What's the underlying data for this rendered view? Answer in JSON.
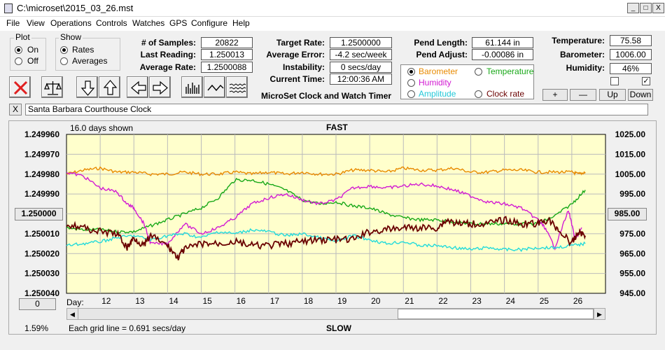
{
  "window": {
    "title": "C:\\microset\\2015_03_26.mst",
    "min": "_",
    "max": "□",
    "close": "X"
  },
  "menu": [
    "File",
    "View",
    "Operations",
    "Controls",
    "Watches",
    "GPS",
    "Configure",
    "Help"
  ],
  "plot": {
    "title": "Plot",
    "on": "On",
    "off": "Off"
  },
  "show": {
    "title": "Show",
    "rates": "Rates",
    "averages": "Averages"
  },
  "stats": {
    "samples_label": "# of Samples:",
    "samples": "20822",
    "last_label": "Last Reading:",
    "last": "1.250013",
    "avg_label": "Average Rate:",
    "avg": "1.2500088"
  },
  "rates": {
    "target_label": "Target Rate:",
    "target": "1.2500000",
    "avgerr_label": "Average Error:",
    "avgerr": "-4.2 sec/week",
    "instab_label": "Instability:",
    "instab": "0 secs/day",
    "time_label": "Current Time:",
    "time": "12:00:36 AM",
    "app_title": "MicroSet Clock and Watch Timer"
  },
  "pend": {
    "length_label": "Pend Length:",
    "length": "61.144 in",
    "adjust_label": "Pend Adjust:",
    "adjust": "-0.00086 in"
  },
  "aux": {
    "barometer": "Barometer",
    "temperature": "Temperature",
    "humidity": "Humidity",
    "amplitude": "Amplitude",
    "clockrate": "Clock rate"
  },
  "env": {
    "temp_label": "Temperature:",
    "temp": "75.58",
    "baro_label": "Barometer:",
    "baro": "1006.00",
    "hum_label": "Humidity:",
    "hum": "46%",
    "plus": "+",
    "minus": "—",
    "up": "Up",
    "down": "Down",
    "check_mark": "✓"
  },
  "clockname": {
    "close": "X",
    "name": "Santa Barbara Courthouse Clock"
  },
  "chart": {
    "days_shown": "16.0 days shown",
    "top": "FAST",
    "bottom": "SLOW",
    "center_btn": "1.250000",
    "right_btn": "985.00",
    "zero_btn": "0",
    "day_label": "Day:",
    "grid_note": "Each grid line = 0.691 secs/day",
    "percent": "1.59%",
    "scroll_left": "◀",
    "scroll_right": "▶"
  },
  "colors": {
    "barometer": "#e88a00",
    "temperature": "#18a818",
    "humidity": "#d21ad2",
    "amplitude": "#22dada",
    "clock": "#6a0000",
    "plotbg": "#ffffcc"
  },
  "chart_data": {
    "type": "line",
    "left_ticks": [
      "1.249960",
      "1.249970",
      "1.249980",
      "1.249990",
      "1.250000",
      "1.250010",
      "1.250020",
      "1.250030",
      "1.250040"
    ],
    "right_ticks": [
      "1025.00",
      "1015.00",
      "1005.00",
      "995.00",
      "985.00",
      "975.00",
      "965.00",
      "955.00",
      "945.00"
    ],
    "ylim_left": [
      1.25004,
      1.24996
    ],
    "ylim_right": [
      945,
      1025
    ],
    "x_tick_labels": [
      "12",
      "13",
      "14",
      "15",
      "16",
      "17",
      "18",
      "19",
      "20",
      "21",
      "22",
      "23",
      "24",
      "25",
      "26"
    ],
    "x_ticks": [
      12,
      13,
      14,
      15,
      16,
      17,
      18,
      19,
      20,
      21,
      22,
      23,
      24,
      25,
      26
    ],
    "xlim": [
      11,
      27
    ],
    "series": [
      {
        "name": "Barometer",
        "axis": "right",
        "color": "#e88a00",
        "x": [
          11,
          11.5,
          12,
          12.5,
          13,
          13.5,
          14,
          14.5,
          15,
          15.5,
          16,
          16.5,
          17,
          17.5,
          18,
          18.5,
          19,
          19.5,
          20,
          20.5,
          21,
          21.5,
          22,
          22.5,
          23,
          23.5,
          24,
          24.5,
          25,
          25.5,
          26,
          26.2,
          26.4
        ],
        "y": [
          1005,
          1007,
          1008,
          1006,
          1006,
          1005,
          1005,
          1006,
          1005,
          1005,
          1006,
          1005,
          1006,
          1005,
          1006,
          1005,
          1005,
          1007,
          1007,
          1006,
          1008,
          1007,
          1007,
          1008,
          1006,
          1006,
          1007,
          1007,
          1006,
          1006,
          1006,
          1005,
          1006
        ]
      },
      {
        "name": "Temperature",
        "axis": "right",
        "color": "#18a818",
        "x": [
          11,
          11.5,
          12,
          12.5,
          13,
          13.5,
          14,
          14.5,
          15,
          15.5,
          16,
          16.5,
          17,
          17.5,
          18,
          18.5,
          19,
          19.5,
          20,
          20.5,
          21,
          21.5,
          22,
          22.5,
          23,
          23.5,
          24,
          24.5,
          25,
          25.5,
          26,
          26.4
        ],
        "y": [
          978,
          977,
          977,
          976,
          976,
          979,
          982,
          985,
          988,
          993,
          1002,
          1002,
          1000,
          997,
          992,
          990,
          991,
          989,
          988,
          985,
          983,
          982,
          982,
          981,
          980,
          980,
          980,
          980,
          980,
          984,
          990,
          997
        ]
      },
      {
        "name": "Humidity",
        "axis": "right",
        "color": "#d21ad2",
        "x": [
          11,
          11.5,
          12,
          12.5,
          12.8,
          13,
          13.3,
          13.5,
          14,
          14.5,
          15,
          15.5,
          16,
          16.5,
          17,
          17.5,
          18,
          18.5,
          19,
          19.5,
          20,
          20.5,
          21,
          21.5,
          22,
          22.5,
          23,
          23.5,
          24,
          24.5,
          25,
          25.2,
          25.5,
          25.9,
          26.1,
          26.3
        ],
        "y": [
          1006,
          1004,
          998,
          996,
          990,
          988,
          980,
          970,
          970,
          980,
          975,
          978,
          983,
          990,
          993,
          995,
          992,
          990,
          992,
          998,
          999,
          998,
          999,
          1000,
          999,
          997,
          994,
          991,
          990,
          988,
          982,
          978,
          968,
          987,
          972,
          978
        ]
      },
      {
        "name": "Amplitude",
        "axis": "right",
        "color": "#22dada",
        "x": [
          11,
          11.5,
          12,
          12.5,
          13,
          13.5,
          14,
          14.5,
          15,
          15.5,
          16,
          16.5,
          17,
          17.5,
          18,
          18.5,
          19,
          19.5,
          20,
          20.5,
          21,
          21.5,
          22,
          22.5,
          23,
          23.5,
          24,
          24.5,
          25,
          25.5,
          26,
          26.4
        ],
        "y": [
          969,
          970,
          971,
          973,
          974,
          972,
          974,
          975,
          973,
          976,
          975,
          977,
          976,
          974,
          975,
          973,
          971,
          974,
          972,
          970,
          971,
          969,
          969,
          968,
          967,
          968,
          967,
          967,
          968,
          968,
          969,
          970
        ]
      },
      {
        "name": "Clock rate",
        "axis": "left",
        "color": "#6a0000",
        "x": [
          11,
          11.5,
          12,
          12.5,
          12.8,
          13,
          13.3,
          13.5,
          14,
          14.3,
          14.5,
          15,
          15.5,
          16,
          16.5,
          17,
          17.5,
          18,
          18.5,
          19,
          19.5,
          20,
          20.5,
          21,
          21.5,
          22,
          22.3,
          22.6,
          23,
          23.5,
          24,
          24.5,
          25,
          25.3,
          25.6,
          26,
          26.2,
          26.4
        ],
        "y": [
          1.250005,
          1.250007,
          1.250009,
          1.25001,
          1.250017,
          1.250012,
          1.250016,
          1.250011,
          1.250016,
          1.250022,
          1.250018,
          1.250015,
          1.250015,
          1.250014,
          1.250016,
          1.250016,
          1.250015,
          1.250014,
          1.250013,
          1.250013,
          1.250013,
          1.250009,
          1.250008,
          1.250007,
          1.250007,
          1.250007,
          1.250003,
          1.250005,
          1.250005,
          1.250005,
          1.250003,
          1.250005,
          1.250005,
          1.250003,
          1.250008,
          1.250015,
          1.250009,
          1.250011
        ]
      }
    ]
  }
}
